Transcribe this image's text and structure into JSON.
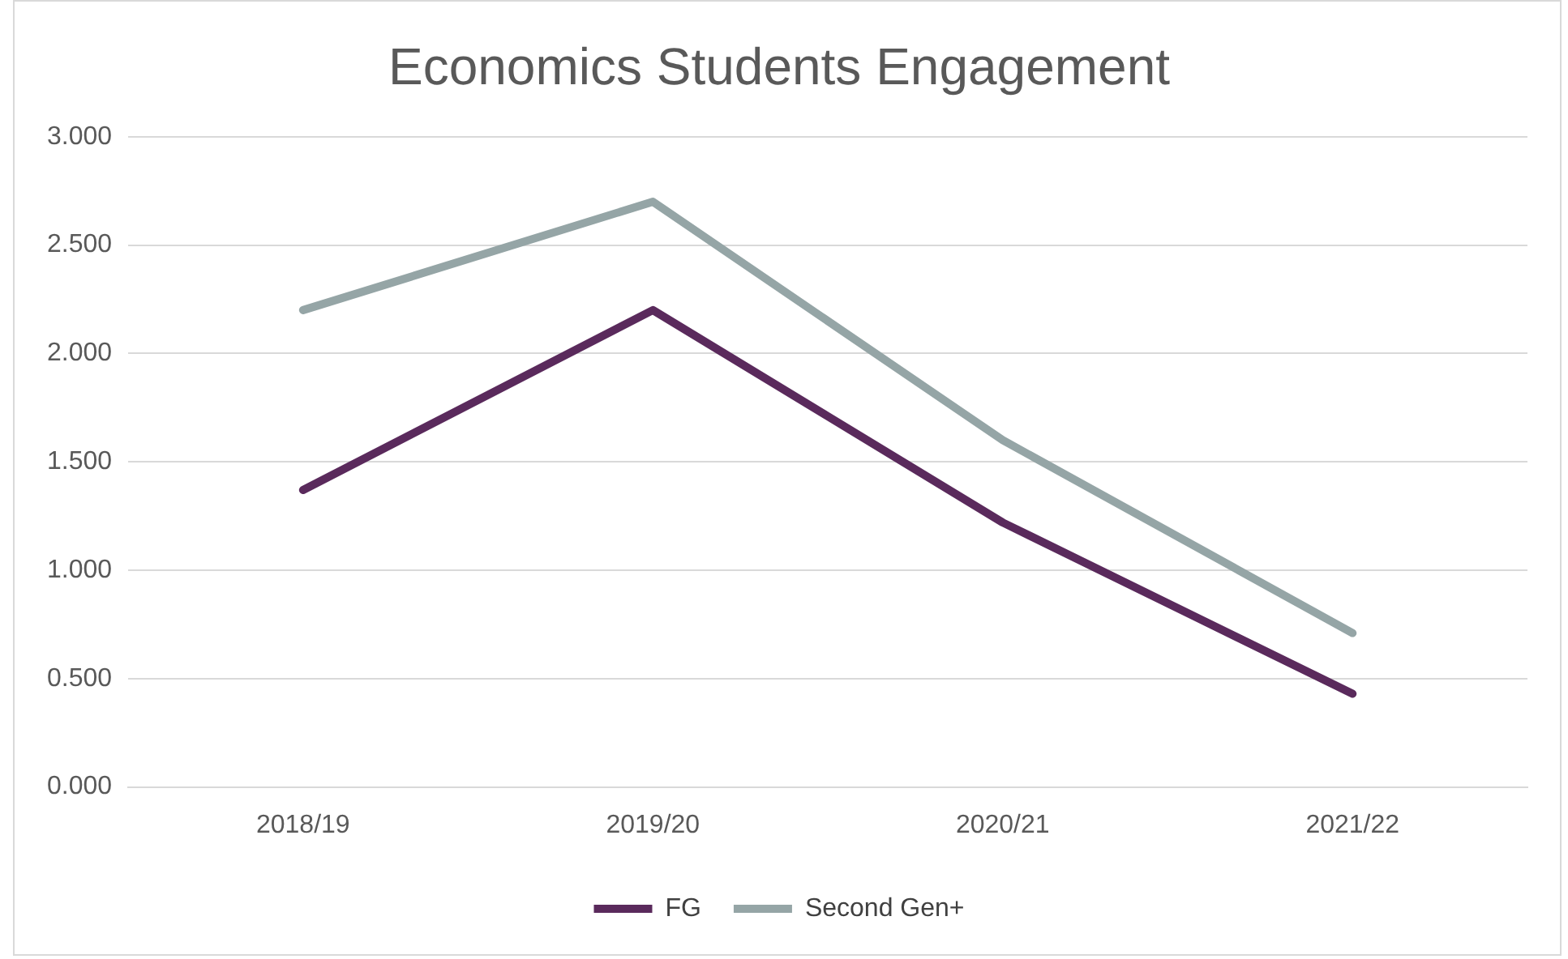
{
  "chart_data": {
    "type": "line",
    "title": "Economics Students Engagement",
    "categories": [
      "2018/19",
      "2019/20",
      "2020/21",
      "2021/22"
    ],
    "series": [
      {
        "name": "FG",
        "color": "#5a2a5c",
        "values": [
          1.37,
          2.2,
          1.22,
          0.43
        ]
      },
      {
        "name": "Second Gen+",
        "color": "#95a5a6",
        "values": [
          2.2,
          2.7,
          1.6,
          0.71
        ]
      }
    ],
    "ylim": [
      0,
      3
    ],
    "yticks": [
      {
        "value": 0,
        "label": "0.000"
      },
      {
        "value": 0.5,
        "label": "0.500"
      },
      {
        "value": 1,
        "label": "1.000"
      },
      {
        "value": 1.5,
        "label": "1.500"
      },
      {
        "value": 2,
        "label": "2.000"
      },
      {
        "value": 2.5,
        "label": "2.500"
      },
      {
        "value": 3,
        "label": "3.000"
      }
    ],
    "grid": "y",
    "legend": "bottom",
    "marker": "none",
    "line_style": "solid"
  }
}
